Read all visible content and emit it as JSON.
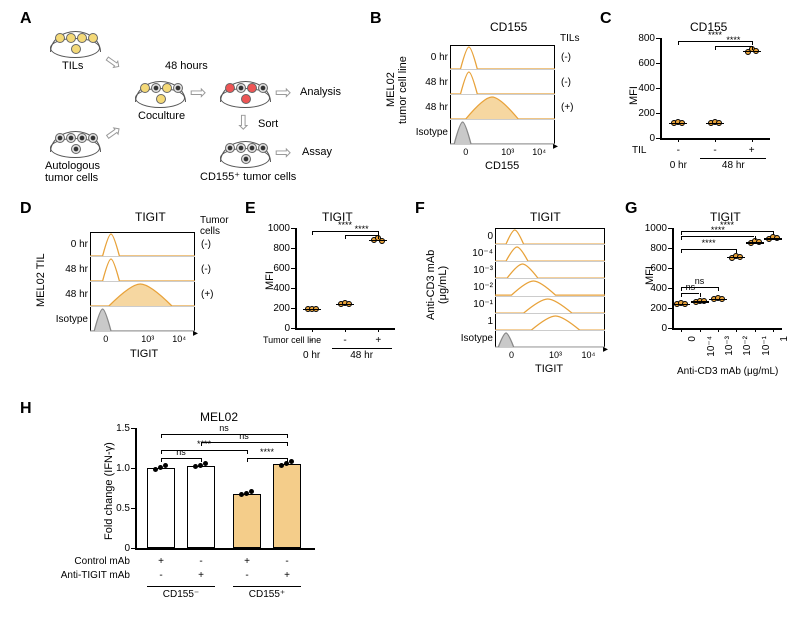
{
  "colors": {
    "orange_line": "#e8a23a",
    "orange_fill": "#f4cd8a",
    "orange_dot": "#e8a23a",
    "grey_fill": "#bcbcbc",
    "black": "#000000",
    "bar_open": "#ffffff",
    "bar_fill": "#f4cd8a"
  },
  "panelA": {
    "label": "A",
    "tils_label": "TILs",
    "autologous_label": "Autologous\ntumor cells",
    "coculture_label": "Coculture",
    "time_label": "48 hours",
    "analysis_label": "Analysis",
    "sort_label": "Sort",
    "sorted_label": "CD155⁺ tumor cells",
    "assay_label": "Assay"
  },
  "panelB": {
    "label": "B",
    "title": "CD155",
    "yaxis_label": "MEL02\ntumor cell line",
    "xaxis_label": "CD155",
    "right_header": "TILs",
    "rows": [
      {
        "left": "0 hr",
        "right": "(-)",
        "peak_x": 0.18,
        "width": 0.08,
        "fill": false
      },
      {
        "left": "48 hr",
        "right": "(-)",
        "peak_x": 0.18,
        "width": 0.08,
        "fill": false
      },
      {
        "left": "48 hr",
        "right": "(+)",
        "peak_x": 0.4,
        "width": 0.25,
        "fill": true
      },
      {
        "left": "Isotype",
        "right": "",
        "peak_x": 0.12,
        "width": 0.08,
        "fill": true,
        "grey": true
      }
    ],
    "xticks": [
      "0",
      "10³",
      "10⁴"
    ]
  },
  "panelC": {
    "label": "C",
    "title": "CD155",
    "yaxis": "MFI",
    "ylim": [
      0,
      800
    ],
    "yticks": [
      0,
      200,
      400,
      600,
      800
    ],
    "groups": [
      {
        "x_label_bottom": "0 hr",
        "til": "-",
        "values": [
          120,
          125,
          122
        ]
      },
      {
        "x_label_bottom": "48 hr",
        "til": "-",
        "values": [
          121,
          128,
          123
        ]
      },
      {
        "x_label_bottom": "",
        "til": "+",
        "values": [
          690,
          710,
          700
        ]
      }
    ],
    "row_label": "TIL",
    "sig": [
      {
        "from": 0,
        "to": 2,
        "label": "****",
        "y": 780
      },
      {
        "from": 1,
        "to": 2,
        "label": "****",
        "y": 740
      }
    ]
  },
  "panelD": {
    "label": "D",
    "title": "TIGIT",
    "yaxis_label": "MEL02 TIL",
    "xaxis_label": "TIGIT",
    "right_header": "Tumor cells",
    "rows": [
      {
        "left": "0 hr",
        "right": "(-)",
        "peak_x": 0.2,
        "width": 0.08,
        "fill": false
      },
      {
        "left": "48 hr",
        "right": "(-)",
        "peak_x": 0.2,
        "width": 0.08,
        "fill": false
      },
      {
        "left": "48 hr",
        "right": "(+)",
        "peak_x": 0.48,
        "width": 0.3,
        "fill": true
      },
      {
        "left": "Isotype",
        "right": "",
        "peak_x": 0.12,
        "width": 0.08,
        "fill": true,
        "grey": true
      }
    ],
    "xticks": [
      "0",
      "10³",
      "10⁴"
    ]
  },
  "panelE": {
    "label": "E",
    "title": "TIGIT",
    "yaxis": "MFI",
    "ylim": [
      0,
      1000
    ],
    "yticks": [
      0,
      200,
      400,
      600,
      800,
      1000
    ],
    "groups": [
      {
        "x_label_bottom": "0 hr",
        "sub": "-",
        "values": [
          190,
          195,
          192
        ]
      },
      {
        "x_label_bottom": "48 hr",
        "sub": "-",
        "values": [
          240,
          248,
          244
        ]
      },
      {
        "x_label_bottom": "",
        "sub": "+",
        "values": [
          880,
          900,
          870
        ]
      }
    ],
    "row_label": "Tumor cell line",
    "sig": [
      {
        "from": 0,
        "to": 2,
        "label": "****",
        "y": 970
      },
      {
        "from": 1,
        "to": 2,
        "label": "****",
        "y": 930
      }
    ]
  },
  "panelF": {
    "label": "F",
    "title": "TIGIT",
    "yaxis_label": "Anti-CD3 mAb\n(μg/mL)",
    "xaxis_label": "TIGIT",
    "rows": [
      {
        "left": "0",
        "peak_x": 0.18,
        "width": 0.08,
        "fill": false
      },
      {
        "left": "10⁻⁴",
        "peak_x": 0.2,
        "width": 0.1,
        "fill": false
      },
      {
        "left": "10⁻³",
        "peak_x": 0.25,
        "width": 0.14,
        "fill": false
      },
      {
        "left": "10⁻²",
        "peak_x": 0.35,
        "width": 0.2,
        "fill": false
      },
      {
        "left": "10⁻¹",
        "peak_x": 0.48,
        "width": 0.22,
        "fill": false
      },
      {
        "left": "1",
        "peak_x": 0.55,
        "width": 0.22,
        "fill": false
      },
      {
        "left": "Isotype",
        "peak_x": 0.1,
        "width": 0.07,
        "fill": true,
        "grey": true
      }
    ],
    "xticks": [
      "0",
      "10³",
      "10⁴"
    ]
  },
  "panelG": {
    "label": "G",
    "title": "TIGIT",
    "yaxis": "MFI",
    "ylim": [
      0,
      1000
    ],
    "yticks": [
      0,
      200,
      400,
      600,
      800,
      1000
    ],
    "groups": [
      {
        "x": "0",
        "values": [
          240,
          250,
          245
        ]
      },
      {
        "x": "10⁻⁴",
        "values": [
          260,
          275,
          268
        ]
      },
      {
        "x": "10⁻³",
        "values": [
          290,
          300,
          295
        ]
      },
      {
        "x": "10⁻²",
        "values": [
          700,
          725,
          712
        ]
      },
      {
        "x": "10⁻¹",
        "values": [
          850,
          870,
          860
        ]
      },
      {
        "x": "1",
        "values": [
          890,
          910,
          900
        ]
      }
    ],
    "xaxis_label": "Anti-CD3 mAb (μg/mL)",
    "sig": [
      {
        "from": 0,
        "to": 1,
        "label": "ns",
        "y": 350
      },
      {
        "from": 0,
        "to": 2,
        "label": "ns",
        "y": 410
      },
      {
        "from": 0,
        "to": 3,
        "label": "****",
        "y": 790
      },
      {
        "from": 0,
        "to": 4,
        "label": "****",
        "y": 920
      },
      {
        "from": 0,
        "to": 5,
        "label": "****",
        "y": 970
      }
    ]
  },
  "panelH": {
    "label": "H",
    "title": "MEL02",
    "yaxis": "Fold change (IFN-γ)",
    "ylim": [
      0,
      1.5
    ],
    "yticks": [
      "0",
      "0.5",
      "1.0",
      "1.5"
    ],
    "bars": [
      {
        "group": "CD155⁻",
        "ctrl": "+",
        "anti": "-",
        "val": 1.0,
        "fill": false
      },
      {
        "group": "CD155⁻",
        "ctrl": "-",
        "anti": "+",
        "val": 1.03,
        "fill": false
      },
      {
        "group": "CD155⁺",
        "ctrl": "+",
        "anti": "-",
        "val": 0.68,
        "fill": true
      },
      {
        "group": "CD155⁺",
        "ctrl": "-",
        "anti": "+",
        "val": 1.05,
        "fill": true
      }
    ],
    "row_labels": [
      "Control mAb",
      "Anti-TIGIT mAb"
    ],
    "group_labels": [
      "CD155⁻",
      "CD155⁺"
    ],
    "sig": [
      {
        "from": 0,
        "to": 1,
        "label": "ns",
        "y": 1.12
      },
      {
        "from": 2,
        "to": 3,
        "label": "****",
        "y": 1.12
      },
      {
        "from": 0,
        "to": 2,
        "label": "****",
        "y": 1.22
      },
      {
        "from": 1,
        "to": 3,
        "label": "ns",
        "y": 1.32
      },
      {
        "from": 0,
        "to": 3,
        "label": "ns",
        "y": 1.42
      }
    ]
  }
}
